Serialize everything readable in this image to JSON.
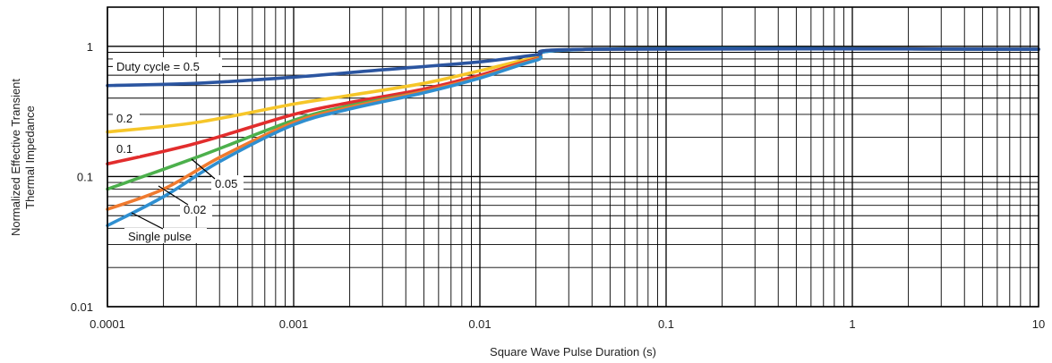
{
  "chart_data": {
    "type": "line",
    "xlabel": "Square Wave Pulse Duration (s)",
    "ylabel": [
      "Normalized Effective Transient",
      "Thermal Impedance"
    ],
    "xscale": "log",
    "yscale": "log",
    "xlim": [
      0.0001,
      10
    ],
    "ylim": [
      0.01,
      2
    ],
    "grid": true,
    "x_ticks": [
      {
        "value": 0.0001,
        "label": "0.0001"
      },
      {
        "value": 0.001,
        "label": "0.001"
      },
      {
        "value": 0.01,
        "label": "0.01"
      },
      {
        "value": 0.1,
        "label": "0.1"
      },
      {
        "value": 1,
        "label": "1"
      },
      {
        "value": 10,
        "label": "10"
      }
    ],
    "y_ticks": [
      {
        "value": 0.01,
        "label": "0.01"
      },
      {
        "value": 0.1,
        "label": "0.1"
      },
      {
        "value": 1,
        "label": "1"
      }
    ],
    "series": [
      {
        "name": "Duty cycle = 0.5",
        "color": "#2b55a0",
        "x": [
          0.0001,
          0.0003,
          0.001,
          0.003,
          0.01,
          0.02,
          0.04,
          10
        ],
        "y": [
          0.5,
          0.52,
          0.58,
          0.66,
          0.76,
          0.86,
          0.95,
          0.95
        ]
      },
      {
        "name": "0.2",
        "color": "#f6c629",
        "x": [
          0.0001,
          0.0003,
          0.001,
          0.002,
          0.005,
          0.01,
          0.02,
          0.04,
          10
        ],
        "y": [
          0.22,
          0.26,
          0.36,
          0.42,
          0.52,
          0.65,
          0.82,
          0.95,
          0.95
        ]
      },
      {
        "name": "0.1",
        "color": "#e22d2d",
        "x": [
          0.0001,
          0.0003,
          0.001,
          0.002,
          0.005,
          0.01,
          0.02,
          0.04,
          10
        ],
        "y": [
          0.125,
          0.18,
          0.3,
          0.37,
          0.47,
          0.6,
          0.8,
          0.95,
          0.95
        ]
      },
      {
        "name": "0.05",
        "color": "#4cb04c",
        "x": [
          0.0001,
          0.0003,
          0.001,
          0.002,
          0.005,
          0.01,
          0.02,
          0.04,
          10
        ],
        "y": [
          0.08,
          0.14,
          0.27,
          0.35,
          0.45,
          0.58,
          0.79,
          0.95,
          0.95
        ]
      },
      {
        "name": "0.02",
        "color": "#ef7a2f",
        "x": [
          0.0001,
          0.0002,
          0.0004,
          0.001,
          0.002,
          0.005,
          0.01,
          0.02,
          0.04,
          10
        ],
        "y": [
          0.056,
          0.08,
          0.14,
          0.26,
          0.34,
          0.45,
          0.58,
          0.79,
          0.95,
          0.95
        ]
      },
      {
        "name": "Single pulse",
        "color": "#2f8fd0",
        "x": [
          0.0001,
          0.0002,
          0.0004,
          0.001,
          0.002,
          0.005,
          0.01,
          0.02,
          0.04,
          10
        ],
        "y": [
          0.042,
          0.07,
          0.13,
          0.25,
          0.33,
          0.44,
          0.57,
          0.78,
          0.95,
          0.95
        ]
      }
    ]
  }
}
